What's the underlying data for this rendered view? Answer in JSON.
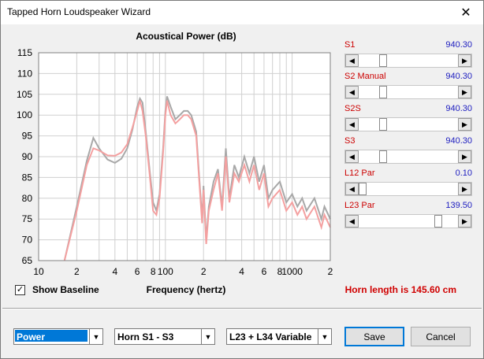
{
  "window": {
    "title": "Tapped Horn Loudspeaker Wizard",
    "close_glyph": "✕"
  },
  "chart_data": {
    "type": "line",
    "title": "Acoustical Power (dB)",
    "xlabel": "Frequency (hertz)",
    "ylabel": "",
    "xscale": "log",
    "xlim": [
      10,
      2000
    ],
    "ylim": [
      65,
      115
    ],
    "y_ticks": [
      "115",
      "110",
      "105",
      "100",
      "95",
      "90",
      "85",
      "80",
      "75",
      "70",
      "65"
    ],
    "x_ticks": [
      {
        "v": 10,
        "label": "10"
      },
      {
        "v": 20,
        "label": "2"
      },
      {
        "v": 40,
        "label": "4"
      },
      {
        "v": 60,
        "label": "6"
      },
      {
        "v": 80,
        "label": "8"
      },
      {
        "v": 100,
        "label": "100"
      },
      {
        "v": 200,
        "label": "2"
      },
      {
        "v": 400,
        "label": "4"
      },
      {
        "v": 600,
        "label": "6"
      },
      {
        "v": 800,
        "label": "8"
      },
      {
        "v": 1000,
        "label": "1000"
      },
      {
        "v": 2000,
        "label": "2"
      }
    ],
    "grid": true,
    "series": [
      {
        "color": "#a8a8a8",
        "x": [
          16,
          20,
          24,
          27,
          30,
          35,
          40,
          45,
          50,
          55,
          60,
          63,
          66,
          70,
          75,
          80,
          85,
          90,
          96,
          100,
          103,
          110,
          120,
          130,
          140,
          150,
          160,
          175,
          185,
          195,
          200,
          210,
          220,
          240,
          260,
          280,
          300,
          320,
          350,
          380,
          420,
          460,
          500,
          550,
          600,
          650,
          700,
          800,
          900,
          1000,
          1100,
          1200,
          1300,
          1500,
          1700,
          1800,
          2000
        ],
        "y": [
          65,
          78,
          89,
          94.5,
          92,
          89.3,
          88.5,
          89.5,
          92,
          96.5,
          102,
          104,
          103,
          96,
          87,
          79,
          77,
          81,
          92,
          101,
          104.5,
          102,
          99,
          100,
          101,
          101,
          100,
          96,
          85,
          75,
          83,
          70,
          78,
          84,
          87,
          78,
          92,
          80,
          88,
          85,
          90,
          86,
          90,
          84,
          88,
          80,
          82,
          84,
          79,
          81,
          78,
          80,
          77,
          80,
          75,
          78,
          75
        ]
      },
      {
        "color": "#f4a0a0",
        "x": [
          16,
          20,
          24,
          27,
          30,
          35,
          40,
          45,
          50,
          55,
          60,
          63,
          66,
          70,
          75,
          80,
          85,
          90,
          96,
          100,
          103,
          110,
          120,
          130,
          140,
          150,
          160,
          175,
          185,
          195,
          200,
          210,
          220,
          240,
          260,
          280,
          300,
          320,
          350,
          380,
          420,
          460,
          500,
          550,
          600,
          650,
          700,
          800,
          900,
          1000,
          1100,
          1200,
          1300,
          1500,
          1700,
          1800,
          2000
        ],
        "y": [
          65,
          77,
          88,
          92,
          91.5,
          90.3,
          90.2,
          91,
          93,
          97,
          101,
          103.5,
          101,
          95,
          86,
          77,
          76,
          80,
          91,
          100,
          103.5,
          100,
          98,
          99,
          100,
          100,
          99,
          95,
          84,
          74,
          82,
          69,
          77,
          82,
          86,
          77,
          90,
          79,
          86,
          84,
          88,
          84,
          88,
          82,
          86,
          78,
          80,
          82,
          77,
          79,
          76,
          78,
          75,
          78,
          73,
          76,
          73
        ]
      }
    ]
  },
  "sliders": [
    {
      "label": "S1",
      "value": "940.30",
      "position": 0.22
    },
    {
      "label": "S2  Manual",
      "value": "940.30",
      "position": 0.22
    },
    {
      "label": "S2S",
      "value": "940.30",
      "position": 0.22
    },
    {
      "label": "S3",
      "value": "940.30",
      "position": 0.22
    },
    {
      "label": "L12  Par",
      "value": "0.10",
      "position": 0.0
    },
    {
      "label": "L23  Par",
      "value": "139.50",
      "position": 0.83
    }
  ],
  "baseline": {
    "label": "Show Baseline",
    "checked": true,
    "check_glyph": "✓"
  },
  "status": {
    "horn_length": "Horn length is 145.60 cm"
  },
  "dropdowns": [
    {
      "value": "Power"
    },
    {
      "value": "Horn S1 - S3"
    },
    {
      "value": "L23 + L34 Variable"
    }
  ],
  "buttons": {
    "save": "Save",
    "cancel": "Cancel"
  },
  "icons": {
    "dropdown": "▼",
    "left_arrow": "◀",
    "right_arrow": "▶"
  }
}
